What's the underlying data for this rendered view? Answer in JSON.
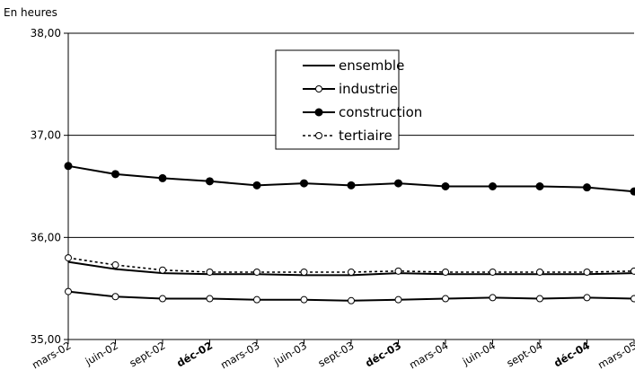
{
  "chart_data": {
    "type": "line",
    "unit_label": "En heures",
    "categories": [
      "mars-02",
      "juin-02",
      "sept-02",
      "déc-02",
      "mars-03",
      "juin-03",
      "sept-03",
      "déc-03",
      "mars-04",
      "juin-04",
      "sept-04",
      "déc-04",
      "mars-05"
    ],
    "ylim": [
      35,
      38
    ],
    "y_ticks": [
      "35,00",
      "36,00",
      "37,00",
      "38,00"
    ],
    "grid": "horizontal",
    "legend_placement": "top-center",
    "series": [
      {
        "name": "ensemble",
        "style": "solid",
        "marker": "none",
        "values": [
          35.76,
          35.69,
          35.65,
          35.64,
          35.64,
          35.63,
          35.63,
          35.65,
          35.64,
          35.64,
          35.64,
          35.64,
          35.65
        ]
      },
      {
        "name": "industrie",
        "style": "solid",
        "marker": "open-circle",
        "values": [
          35.47,
          35.42,
          35.4,
          35.4,
          35.39,
          35.39,
          35.38,
          35.39,
          35.4,
          35.41,
          35.4,
          35.41,
          35.4
        ]
      },
      {
        "name": "construction",
        "style": "solid",
        "marker": "filled-circle",
        "values": [
          36.7,
          36.62,
          36.58,
          36.55,
          36.51,
          36.53,
          36.51,
          36.53,
          36.5,
          36.5,
          36.5,
          36.49,
          36.45
        ]
      },
      {
        "name": "tertiaire",
        "style": "dotted",
        "marker": "open-circle",
        "values": [
          35.8,
          35.73,
          35.68,
          35.66,
          35.66,
          35.66,
          35.66,
          35.67,
          35.66,
          35.66,
          35.66,
          35.66,
          35.67
        ]
      }
    ],
    "colors": {
      "line": "#000000",
      "grid": "#000000",
      "background": "#ffffff"
    }
  }
}
